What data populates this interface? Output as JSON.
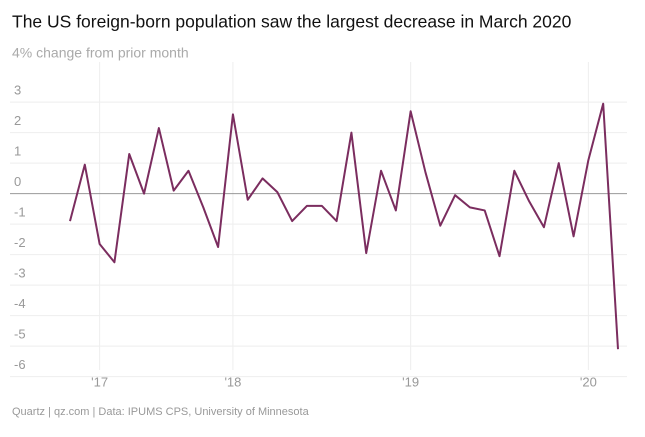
{
  "chart_data": {
    "type": "line",
    "title": "The US foreign-born population saw the largest decrease in March 2020",
    "subtitle": "4% change from prior month",
    "source": "Quartz | qz.com | Data: IPUMS CPS, University of Minnesota",
    "categories": [
      null,
      null,
      "'17",
      null,
      null,
      null,
      null,
      null,
      null,
      null,
      null,
      "'18",
      null,
      null,
      null,
      null,
      null,
      null,
      null,
      null,
      null,
      null,
      null,
      "'19",
      null,
      null,
      null,
      null,
      null,
      null,
      null,
      null,
      null,
      null,
      null,
      "'20",
      null,
      null
    ],
    "series": [
      {
        "name": "Change from prior month",
        "color": "#7b2d5f",
        "values": [
          -0.9,
          0.95,
          -1.65,
          -2.25,
          1.3,
          0,
          2.15,
          0.1,
          0.75,
          -0.45,
          -1.75,
          2.6,
          -0.2,
          0.5,
          0.05,
          -0.9,
          -0.4,
          -0.4,
          -0.9,
          2.0,
          -1.95,
          0.75,
          -0.55,
          2.7,
          0.7,
          -1.05,
          -0.05,
          -0.45,
          -0.55,
          -2.05,
          0.75,
          -0.25,
          -1.1,
          1.0,
          -1.4,
          1.1,
          2.95,
          -5.1
        ]
      }
    ],
    "ylim": [
      -6.5,
      3.7
    ],
    "yticks": [
      -6,
      -5,
      -4,
      -3,
      -2,
      -1,
      0,
      1,
      2,
      3
    ],
    "grid": true
  }
}
